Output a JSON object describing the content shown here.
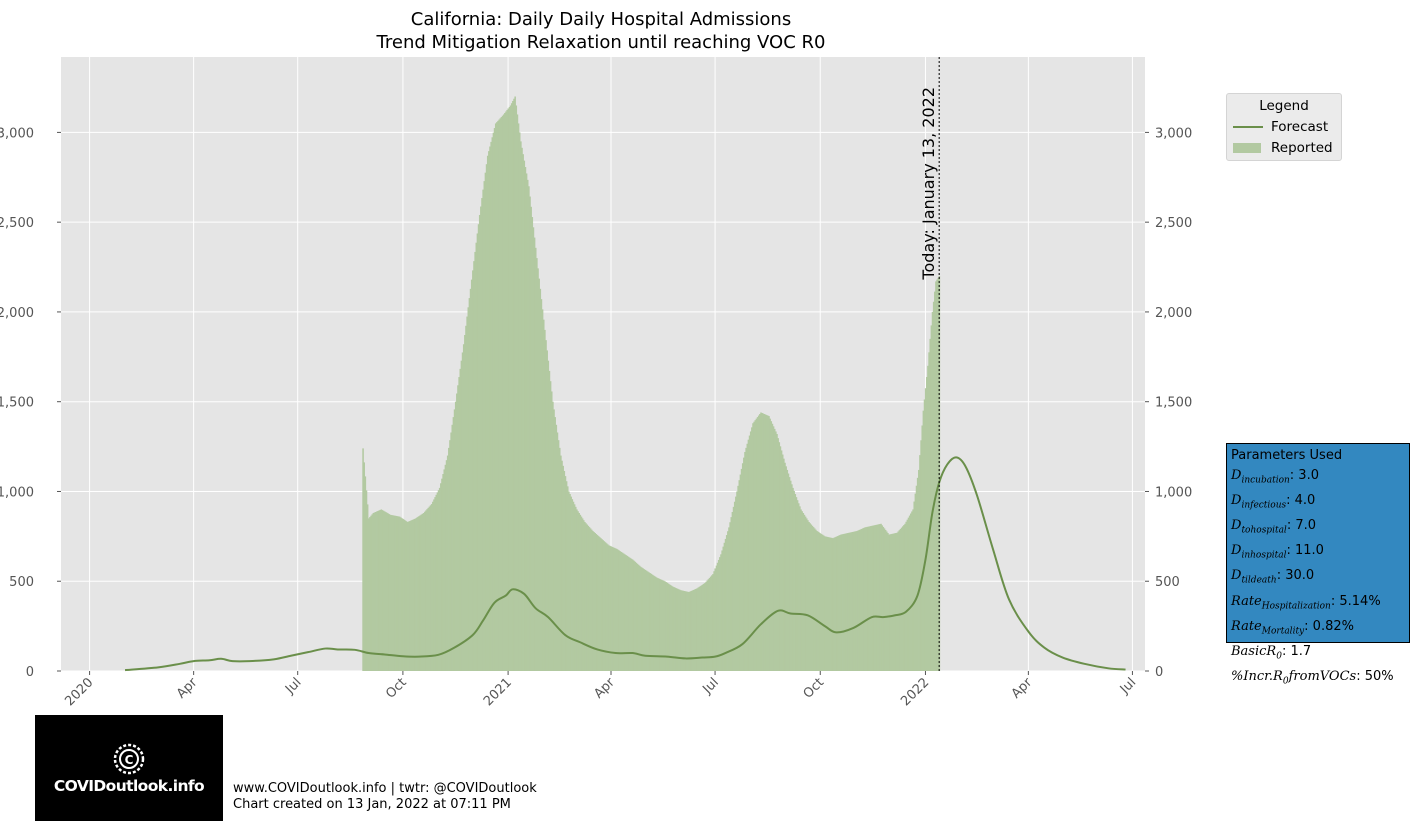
{
  "chart_data": {
    "type": "bar+line",
    "title_line1": "California: Daily Daily Hospital Admissions",
    "title_line2": "Trend Mitigation Relaxation until reaching VOC R0",
    "x_ticks": [
      "2020",
      "Apr",
      "Jul",
      "Oct",
      "2021",
      "Apr",
      "Jul",
      "Oct",
      "2022",
      "Apr",
      "Jul"
    ],
    "x_tick_dates": [
      "2020-01-01",
      "2020-04-01",
      "2020-07-01",
      "2020-10-01",
      "2021-01-01",
      "2021-04-01",
      "2021-07-01",
      "2021-10-01",
      "2022-01-01",
      "2022-04-01",
      "2022-07-01"
    ],
    "x_range": [
      "2019-12-07",
      "2022-07-12"
    ],
    "y_ticks": [
      "0",
      "500",
      "1,000",
      "1,500",
      "2,000",
      "2,500",
      "3,000"
    ],
    "y_tick_values": [
      0,
      500,
      1000,
      1500,
      2000,
      2500,
      3000
    ],
    "ylim": [
      0,
      3420
    ],
    "grid": true,
    "today_label": "Today: January 13, 2022",
    "today_date": "2022-01-13",
    "colors": {
      "forecast": "#6a8f4a",
      "reported": "#b2c9a1",
      "plot_bg": "#e5e5e5",
      "grid": "#ffffff",
      "params_bg": "#3388c0"
    },
    "series": [
      {
        "name": "Reported",
        "type": "bar",
        "points": [
          [
            "2020-08-27",
            1240
          ],
          [
            "2020-09-01",
            850
          ],
          [
            "2020-09-05",
            880
          ],
          [
            "2020-09-12",
            900
          ],
          [
            "2020-09-20",
            870
          ],
          [
            "2020-09-28",
            860
          ],
          [
            "2020-10-05",
            830
          ],
          [
            "2020-10-12",
            850
          ],
          [
            "2020-10-19",
            880
          ],
          [
            "2020-10-26",
            930
          ],
          [
            "2020-11-02",
            1020
          ],
          [
            "2020-11-09",
            1200
          ],
          [
            "2020-11-16",
            1500
          ],
          [
            "2020-11-23",
            1820
          ],
          [
            "2020-11-30",
            2180
          ],
          [
            "2020-12-07",
            2540
          ],
          [
            "2020-12-14",
            2870
          ],
          [
            "2020-12-21",
            3050
          ],
          [
            "2020-12-28",
            3100
          ],
          [
            "2021-01-03",
            3150
          ],
          [
            "2021-01-07",
            3200
          ],
          [
            "2021-01-12",
            2950
          ],
          [
            "2021-01-19",
            2700
          ],
          [
            "2021-01-26",
            2300
          ],
          [
            "2021-02-02",
            1900
          ],
          [
            "2021-02-09",
            1500
          ],
          [
            "2021-02-16",
            1200
          ],
          [
            "2021-02-23",
            1000
          ],
          [
            "2021-03-02",
            900
          ],
          [
            "2021-03-09",
            830
          ],
          [
            "2021-03-16",
            780
          ],
          [
            "2021-03-23",
            740
          ],
          [
            "2021-03-30",
            700
          ],
          [
            "2021-04-06",
            680
          ],
          [
            "2021-04-13",
            650
          ],
          [
            "2021-04-20",
            620
          ],
          [
            "2021-04-27",
            580
          ],
          [
            "2021-05-04",
            550
          ],
          [
            "2021-05-11",
            520
          ],
          [
            "2021-05-18",
            500
          ],
          [
            "2021-05-25",
            470
          ],
          [
            "2021-06-01",
            450
          ],
          [
            "2021-06-08",
            440
          ],
          [
            "2021-06-15",
            460
          ],
          [
            "2021-06-22",
            490
          ],
          [
            "2021-06-29",
            540
          ],
          [
            "2021-07-06",
            650
          ],
          [
            "2021-07-13",
            800
          ],
          [
            "2021-07-20",
            1000
          ],
          [
            "2021-07-27",
            1220
          ],
          [
            "2021-08-03",
            1380
          ],
          [
            "2021-08-10",
            1440
          ],
          [
            "2021-08-17",
            1420
          ],
          [
            "2021-08-24",
            1320
          ],
          [
            "2021-08-31",
            1160
          ],
          [
            "2021-09-07",
            1020
          ],
          [
            "2021-09-14",
            900
          ],
          [
            "2021-09-21",
            830
          ],
          [
            "2021-09-28",
            780
          ],
          [
            "2021-10-05",
            750
          ],
          [
            "2021-10-12",
            740
          ],
          [
            "2021-10-19",
            760
          ],
          [
            "2021-10-26",
            770
          ],
          [
            "2021-11-02",
            780
          ],
          [
            "2021-11-09",
            800
          ],
          [
            "2021-11-16",
            810
          ],
          [
            "2021-11-23",
            820
          ],
          [
            "2021-11-30",
            760
          ],
          [
            "2021-12-07",
            770
          ],
          [
            "2021-12-14",
            820
          ],
          [
            "2021-12-21",
            900
          ],
          [
            "2021-12-26",
            1120
          ],
          [
            "2021-12-30",
            1450
          ],
          [
            "2022-01-03",
            1700
          ],
          [
            "2022-01-07",
            2000
          ],
          [
            "2022-01-10",
            2170
          ],
          [
            "2022-01-13",
            2200
          ]
        ]
      },
      {
        "name": "Forecast",
        "type": "line",
        "points": [
          [
            "2020-02-01",
            5
          ],
          [
            "2020-03-01",
            20
          ],
          [
            "2020-03-20",
            40
          ],
          [
            "2020-04-01",
            55
          ],
          [
            "2020-04-15",
            60
          ],
          [
            "2020-04-25",
            68
          ],
          [
            "2020-05-05",
            55
          ],
          [
            "2020-05-20",
            55
          ],
          [
            "2020-06-10",
            65
          ],
          [
            "2020-06-25",
            85
          ],
          [
            "2020-07-10",
            105
          ],
          [
            "2020-07-25",
            125
          ],
          [
            "2020-08-05",
            120
          ],
          [
            "2020-08-20",
            118
          ],
          [
            "2020-09-01",
            100
          ],
          [
            "2020-09-15",
            92
          ],
          [
            "2020-10-01",
            82
          ],
          [
            "2020-10-15",
            80
          ],
          [
            "2020-11-01",
            90
          ],
          [
            "2020-11-15",
            130
          ],
          [
            "2020-12-01",
            200
          ],
          [
            "2020-12-10",
            280
          ],
          [
            "2020-12-20",
            380
          ],
          [
            "2020-12-30",
            420
          ],
          [
            "2021-01-05",
            455
          ],
          [
            "2021-01-15",
            430
          ],
          [
            "2021-01-25",
            350
          ],
          [
            "2021-02-05",
            300
          ],
          [
            "2021-02-20",
            200
          ],
          [
            "2021-03-05",
            160
          ],
          [
            "2021-03-20",
            120
          ],
          [
            "2021-04-05",
            100
          ],
          [
            "2021-04-20",
            100
          ],
          [
            "2021-05-01",
            85
          ],
          [
            "2021-05-20",
            80
          ],
          [
            "2021-06-05",
            70
          ],
          [
            "2021-06-20",
            75
          ],
          [
            "2021-07-01",
            80
          ],
          [
            "2021-07-10",
            100
          ],
          [
            "2021-07-25",
            150
          ],
          [
            "2021-08-10",
            260
          ],
          [
            "2021-08-25",
            335
          ],
          [
            "2021-09-05",
            320
          ],
          [
            "2021-09-20",
            310
          ],
          [
            "2021-10-05",
            250
          ],
          [
            "2021-10-15",
            215
          ],
          [
            "2021-10-30",
            240
          ],
          [
            "2021-11-15",
            300
          ],
          [
            "2021-11-25",
            300
          ],
          [
            "2021-12-05",
            310
          ],
          [
            "2021-12-15",
            330
          ],
          [
            "2021-12-25",
            420
          ],
          [
            "2022-01-01",
            620
          ],
          [
            "2022-01-07",
            880
          ],
          [
            "2022-01-13",
            1050
          ],
          [
            "2022-01-20",
            1150
          ],
          [
            "2022-01-28",
            1190
          ],
          [
            "2022-02-05",
            1140
          ],
          [
            "2022-02-15",
            980
          ],
          [
            "2022-03-01",
            680
          ],
          [
            "2022-03-15",
            400
          ],
          [
            "2022-04-01",
            220
          ],
          [
            "2022-04-15",
            130
          ],
          [
            "2022-05-01",
            75
          ],
          [
            "2022-05-20",
            40
          ],
          [
            "2022-06-10",
            15
          ],
          [
            "2022-06-25",
            8
          ]
        ]
      }
    ]
  },
  "legend": {
    "title": "Legend",
    "forecast_label": "Forecast",
    "reported_label": "Reported"
  },
  "params": {
    "title": "Parameters Used",
    "incubation": ": 3.0",
    "infectious": ": 4.0",
    "tohospital": ": 7.0",
    "inhospital": ": 11.0",
    "tildeath": ": 30.0",
    "rate_hosp": ": 5.14%",
    "rate_mort": ": 0.82%",
    "basic_r0": ": 1.7",
    "incr_r0": ": 50%"
  },
  "logo": {
    "text": "COVIDoutlook.info"
  },
  "footer": {
    "line1": "www.COVIDoutlook.info | twtr: @COVIDoutlook",
    "line2": "Chart created on 13 Jan, 2022 at 07:11 PM"
  }
}
